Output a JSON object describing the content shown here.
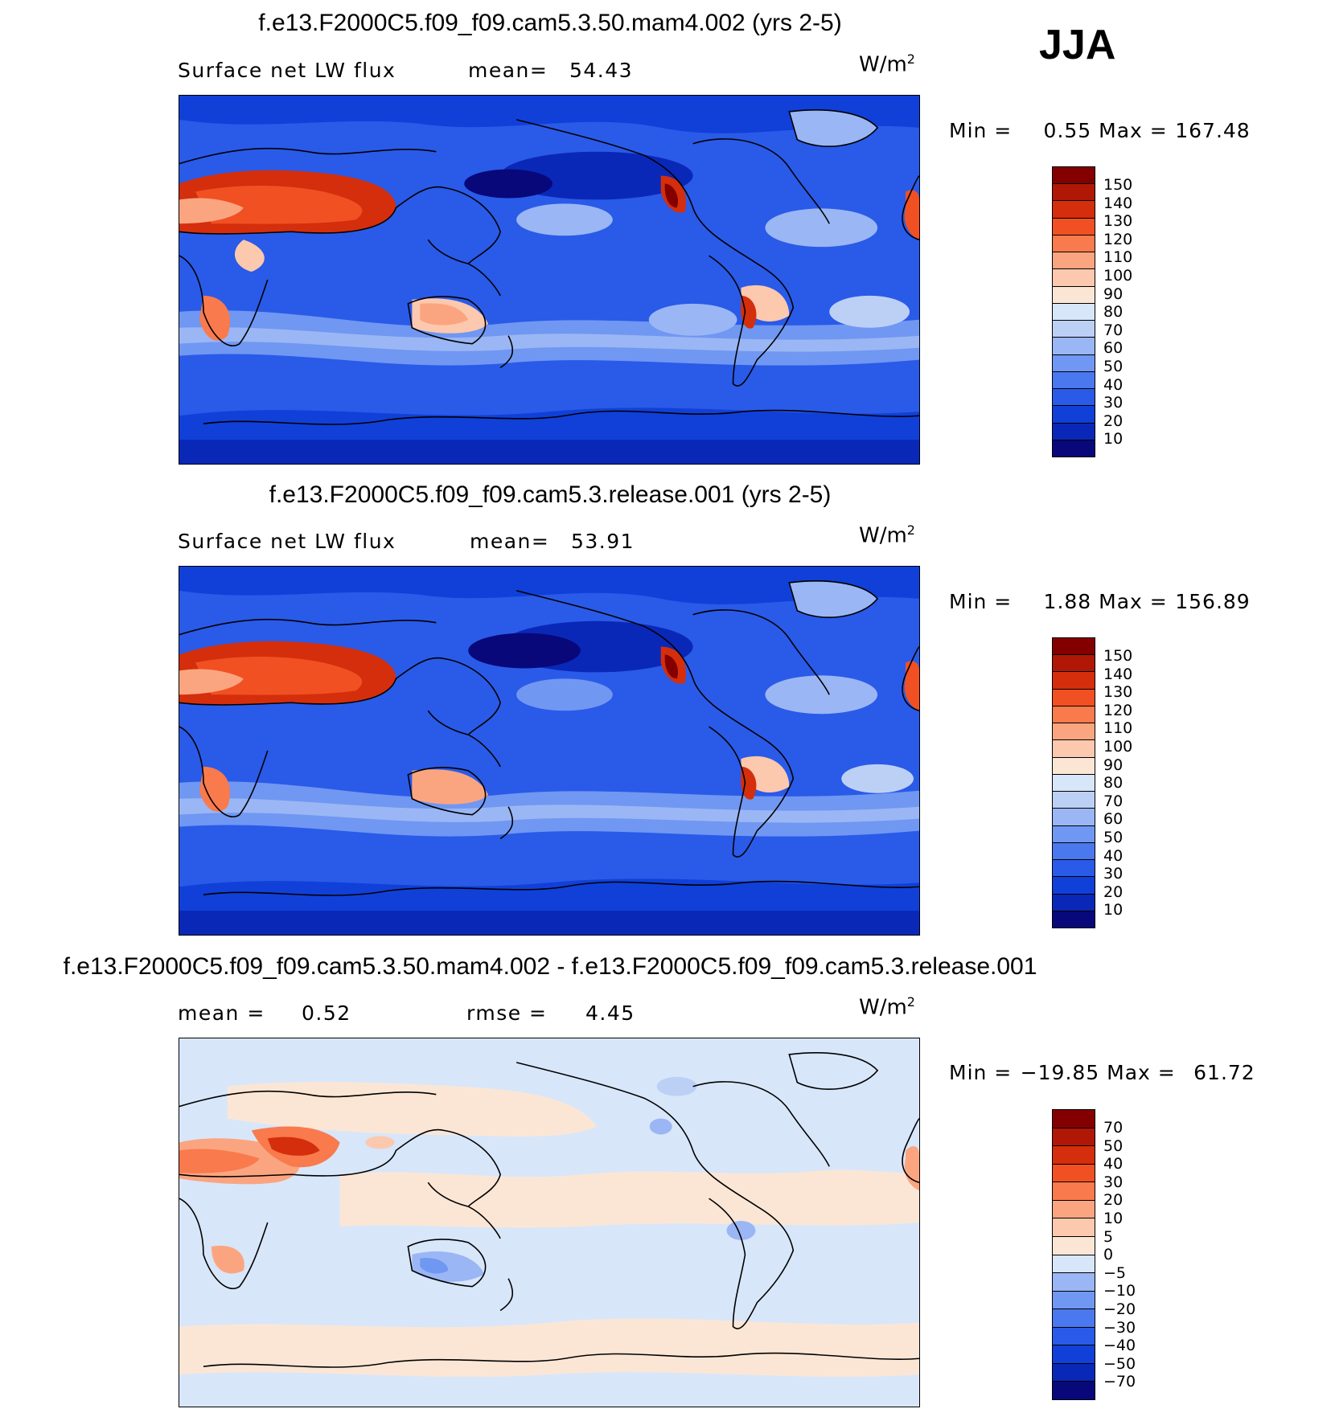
{
  "season": "JJA",
  "colorbar_palette": {
    "abs": [
      "#08087a",
      "#0a28b8",
      "#1040d8",
      "#2a5ae8",
      "#4a78ef",
      "#7097f2",
      "#9ab6f4",
      "#bcd0f6",
      "#d8e6f9",
      "#fbe6d6",
      "#fcc8ae",
      "#fba580",
      "#f97a4c",
      "#f15022",
      "#d42e0c",
      "#b01805",
      "#840000"
    ],
    "diff": [
      "#08087a",
      "#0a28b8",
      "#1040d8",
      "#2a5ae8",
      "#4a78ef",
      "#7097f2",
      "#9ab6f4",
      "#d8e6f9",
      "#fbe6d6",
      "#fcc8ae",
      "#fba580",
      "#f97a4c",
      "#f15022",
      "#d42e0c",
      "#b01805",
      "#840000"
    ]
  },
  "panels": [
    {
      "title": "f.e13.F2000C5.f09_f09.cam5.3.50.mam4.002 (yrs 2-5)",
      "variable": "Surface net LW flux",
      "stat1_label": "mean=",
      "stat1_value": "54.43",
      "stat2_label": "",
      "stat2_value": "",
      "units": "W/m",
      "units_sup": "2",
      "min_label": "Min =",
      "min_value": "0.55",
      "max_label": "Max =",
      "max_value": "167.48",
      "colorbar_labels": [
        "150",
        "140",
        "130",
        "120",
        "110",
        "100",
        "90",
        "80",
        "70",
        "60",
        "50",
        "40",
        "30",
        "20",
        "10"
      ],
      "kind": "abs"
    },
    {
      "title": "f.e13.F2000C5.f09_f09.cam5.3.release.001 (yrs 2-5)",
      "variable": "Surface net LW flux",
      "stat1_label": "mean=",
      "stat1_value": "53.91",
      "stat2_label": "",
      "stat2_value": "",
      "units": "W/m",
      "units_sup": "2",
      "min_label": "Min =",
      "min_value": "1.88",
      "max_label": "Max =",
      "max_value": "156.89",
      "colorbar_labels": [
        "150",
        "140",
        "130",
        "120",
        "110",
        "100",
        "90",
        "80",
        "70",
        "60",
        "50",
        "40",
        "30",
        "20",
        "10"
      ],
      "kind": "abs"
    },
    {
      "title": "f.e13.F2000C5.f09_f09.cam5.3.50.mam4.002 - f.e13.F2000C5.f09_f09.cam5.3.release.001",
      "variable": "",
      "stat1_label": "mean =",
      "stat1_value": "0.52",
      "stat2_label": "rmse =",
      "stat2_value": "4.45",
      "units": "W/m",
      "units_sup": "2",
      "min_label": "Min =",
      "min_value": "−19.85",
      "max_label": "Max =",
      "max_value": "61.72",
      "colorbar_labels": [
        "70",
        "50",
        "40",
        "30",
        "20",
        "10",
        "5",
        "0",
        "−5",
        "−10",
        "−20",
        "−30",
        "−40",
        "−50",
        "−70"
      ],
      "kind": "diff"
    }
  ]
}
